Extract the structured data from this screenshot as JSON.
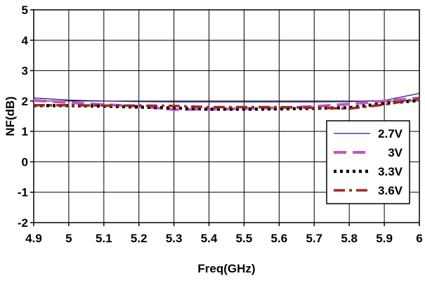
{
  "chart_data": {
    "type": "line",
    "title": "",
    "xlabel": "Freq(GHz)",
    "ylabel": "NF(dB)",
    "xlim": [
      4.9,
      6.0
    ],
    "ylim": [
      -2,
      5
    ],
    "x_ticks": [
      "4.9",
      "5",
      "5.1",
      "5.2",
      "5.3",
      "5.4",
      "5.5",
      "5.6",
      "5.7",
      "5.8",
      "5.9",
      "6"
    ],
    "y_ticks": [
      "-2",
      "-1",
      "0",
      "1",
      "2",
      "3",
      "4",
      "5"
    ],
    "grid": true,
    "legend_position": "right",
    "series": [
      {
        "name": "2.7V",
        "color": "#1f1f7a",
        "dash": "solid",
        "x": [
          4.9,
          5.0,
          5.1,
          5.2,
          5.3,
          5.4,
          5.5,
          5.6,
          5.7,
          5.8,
          5.9,
          6.0
        ],
        "y": [
          2.1,
          2.03,
          2.0,
          1.98,
          1.97,
          1.97,
          1.97,
          1.97,
          1.97,
          1.98,
          2.02,
          2.25
        ]
      },
      {
        "name": "3V",
        "color": "#c653c6",
        "dash": "dashed",
        "x": [
          4.9,
          5.0,
          5.1,
          5.2,
          5.3,
          5.4,
          5.5,
          5.6,
          5.7,
          5.8,
          5.9,
          6.0
        ],
        "y": [
          2.02,
          1.95,
          1.88,
          1.83,
          1.72,
          1.73,
          1.75,
          1.78,
          1.82,
          1.9,
          2.0,
          2.1
        ]
      },
      {
        "name": "3.3V",
        "color": "#000000",
        "dash": "dotted",
        "x": [
          4.9,
          5.0,
          5.1,
          5.2,
          5.3,
          5.4,
          5.5,
          5.6,
          5.7,
          5.8,
          5.9,
          6.0
        ],
        "y": [
          1.85,
          1.85,
          1.83,
          1.8,
          1.77,
          1.73,
          1.73,
          1.74,
          1.76,
          1.78,
          1.92,
          2.02
        ]
      },
      {
        "name": "3.6V",
        "color": "#9c2b1f",
        "dash": "dashdot",
        "x": [
          4.9,
          5.0,
          5.1,
          5.2,
          5.3,
          5.4,
          5.5,
          5.6,
          5.7,
          5.8,
          5.9,
          6.0
        ],
        "y": [
          1.86,
          1.86,
          1.85,
          1.85,
          1.84,
          1.8,
          1.8,
          1.8,
          1.78,
          1.75,
          1.88,
          2.08
        ]
      }
    ]
  }
}
